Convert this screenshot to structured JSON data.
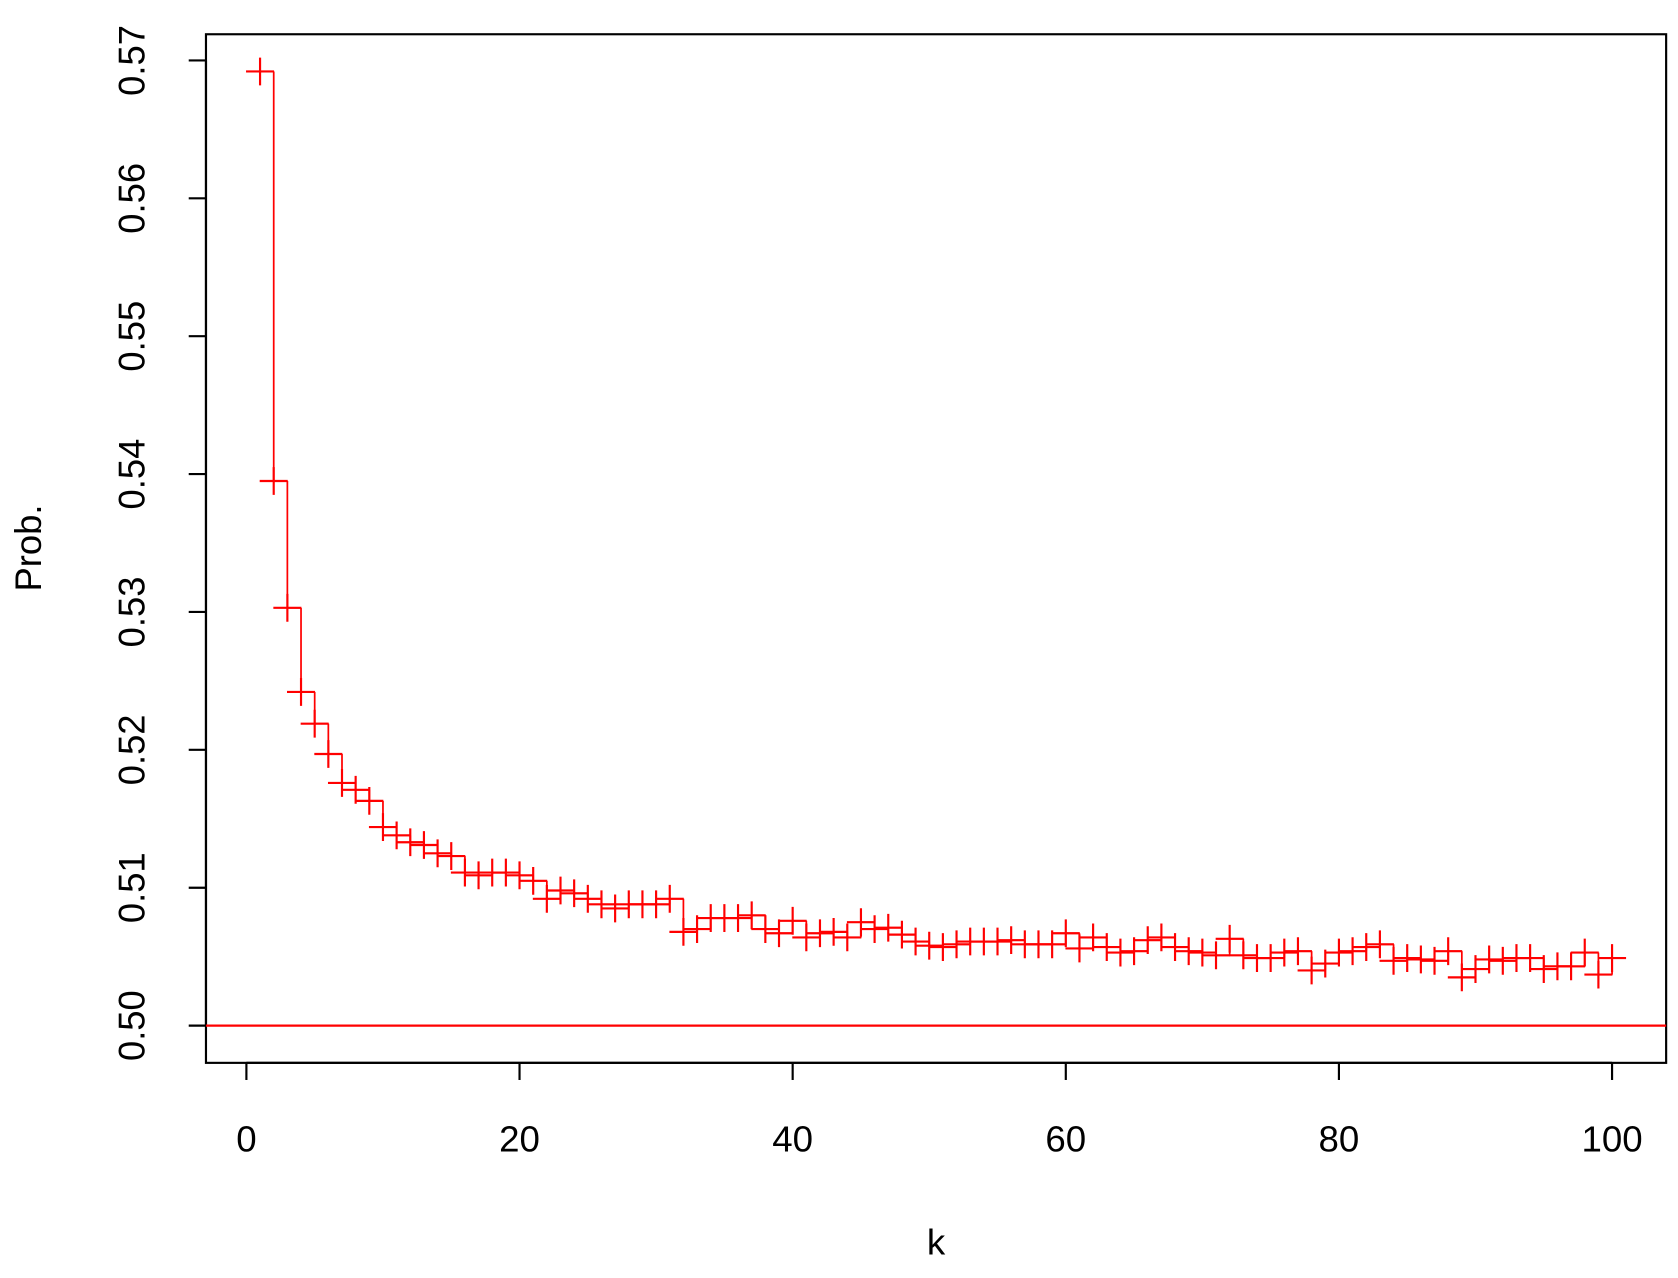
{
  "chart_data": {
    "type": "scatter",
    "marker": "+",
    "step_line": true,
    "color": "#ff0000",
    "x_label": "k",
    "y_label": "Prob.",
    "x": [
      1,
      2,
      3,
      4,
      5,
      6,
      7,
      8,
      9,
      10,
      11,
      12,
      13,
      14,
      15,
      16,
      17,
      18,
      19,
      20,
      21,
      22,
      23,
      24,
      25,
      26,
      27,
      28,
      29,
      30,
      31,
      32,
      33,
      34,
      35,
      36,
      37,
      38,
      39,
      40,
      41,
      42,
      43,
      44,
      45,
      46,
      47,
      48,
      49,
      50,
      51,
      52,
      53,
      54,
      55,
      56,
      57,
      58,
      59,
      60,
      61,
      62,
      63,
      64,
      65,
      66,
      67,
      68,
      69,
      70,
      71,
      72,
      73,
      74,
      75,
      76,
      77,
      78,
      79,
      80,
      81,
      82,
      83,
      84,
      85,
      86,
      87,
      88,
      89,
      90,
      91,
      92,
      93,
      94,
      95,
      96,
      97,
      98,
      99,
      100
    ],
    "values": [
      0.5692,
      0.5395,
      0.5303,
      0.5242,
      0.5219,
      0.5197,
      0.5176,
      0.5171,
      0.5163,
      0.5144,
      0.5138,
      0.5133,
      0.5131,
      0.5125,
      0.5123,
      0.5111,
      0.5109,
      0.5111,
      0.5111,
      0.5109,
      0.5105,
      0.5092,
      0.5098,
      0.5096,
      0.5092,
      0.5088,
      0.5085,
      0.5088,
      0.5088,
      0.5088,
      0.5092,
      0.5068,
      0.507,
      0.5078,
      0.5078,
      0.5078,
      0.508,
      0.507,
      0.5067,
      0.5076,
      0.5064,
      0.5067,
      0.5068,
      0.5064,
      0.5075,
      0.507,
      0.5071,
      0.5066,
      0.5061,
      0.5058,
      0.5057,
      0.5059,
      0.5061,
      0.5061,
      0.5061,
      0.5062,
      0.5059,
      0.5059,
      0.5059,
      0.5067,
      0.5056,
      0.5064,
      0.5057,
      0.5053,
      0.5054,
      0.5062,
      0.5064,
      0.5057,
      0.5054,
      0.5053,
      0.5051,
      0.5063,
      0.5051,
      0.5049,
      0.5049,
      0.5053,
      0.5054,
      0.504,
      0.5045,
      0.5053,
      0.5054,
      0.5057,
      0.5059,
      0.5047,
      0.5049,
      0.5048,
      0.5047,
      0.5054,
      0.5035,
      0.5041,
      0.5048,
      0.5047,
      0.5049,
      0.5049,
      0.5041,
      0.5043,
      0.5043,
      0.5053,
      0.5037,
      0.5049
    ],
    "reference_line": {
      "value": 0.5,
      "color": "#ff0000"
    },
    "xlim": [
      -2.96,
      103.96
    ],
    "xticks": [
      0,
      20,
      40,
      60,
      80,
      100
    ],
    "ylim": [
      0.4973,
      0.5719
    ],
    "yticks": [
      {
        "value": 0.5,
        "label": "0.50"
      },
      0.51,
      0.52,
      0.53,
      0.54,
      0.55,
      0.56,
      0.57
    ],
    "grid": false
  }
}
